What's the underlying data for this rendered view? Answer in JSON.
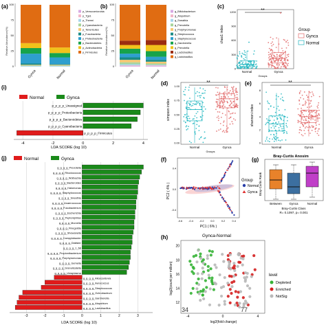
{
  "panels": {
    "a": {
      "label": "(a)",
      "ylabel": "Relative Abundance(%)",
      "groups": [
        "Gynca",
        "Normal"
      ],
      "legend": [
        "p_Verrucomicrobia",
        "p_Tgs1",
        "p_Thermi",
        "p_Cyanobacteria",
        "p_Tenericutes",
        "p_Fusobacteria",
        "p_Proteobacteria",
        "p_Bacteroidetes",
        "p_Actinobacteria",
        "p_Firmicutes"
      ],
      "colors": [
        "#d7a9e3",
        "#f2b5c9",
        "#a6d5ec",
        "#a7d49b",
        "#f7c873",
        "#1a8b85",
        "#2e9fce",
        "#17a34a",
        "#f1c21b",
        "#e06c12"
      ],
      "ticks": [
        "0",
        "25",
        "50",
        "75",
        "100"
      ],
      "values": {
        "Gynca": [
          0,
          0,
          1,
          1,
          1,
          2,
          16,
          9,
          8,
          62
        ],
        "Normal": [
          0,
          0,
          1,
          1,
          1,
          1,
          11,
          7,
          9,
          69
        ]
      }
    },
    "b": {
      "label": "(b)",
      "ylabel": "Relative Abundance(%)",
      "groups": [
        "Gynca",
        "Normal"
      ],
      "legend": [
        "g_Bifidobacterium",
        "g_Atopobium",
        "g_Sneathia",
        "g_Prevotella",
        "g_Porphyromonas",
        "g_Streptococcus",
        "g_Staphylococcus",
        "g_Gardnerella",
        "g_Prevotella",
        "g_Lactobacillus",
        "g_Lactobacillus"
      ],
      "colors": [
        "#d7a9e3",
        "#f2b5c9",
        "#a6d5ec",
        "#a7d49b",
        "#f7c873",
        "#1a8b85",
        "#2e9fce",
        "#17a34a",
        "#f1c21b",
        "#9b2c10",
        "#e06c12"
      ],
      "ticks": [
        "0",
        "25",
        "50",
        "75",
        "100"
      ],
      "values": {
        "Gynca": [
          1,
          1,
          2,
          3,
          4,
          4,
          6,
          8,
          6,
          7,
          58
        ],
        "Normal": [
          1,
          1,
          1,
          2,
          3,
          3,
          5,
          9,
          10,
          8,
          57
        ]
      }
    },
    "c": {
      "label": "(c)",
      "ylabel": "chao1 index",
      "xlabel": "Groups",
      "sig": "**",
      "ticks": [
        "0",
        "300",
        "600",
        "900",
        "1200"
      ],
      "ylim": [
        0,
        1250
      ],
      "legend_title": "Group",
      "legend": [
        "Gynca",
        "Normal"
      ]
    },
    "d": {
      "label": "(d)",
      "ylabel": "simpson index",
      "xlabel": "Groups",
      "sig": "**",
      "ticks": [
        "0.00",
        "0.25",
        "0.50",
        "0.75",
        "1.00"
      ],
      "ylim": [
        0,
        1.02
      ]
    },
    "e": {
      "label": "(e)",
      "ylabel": "shannon index",
      "sig": "**",
      "ticks": [
        "0",
        "2",
        "4",
        "6",
        "8"
      ],
      "ylim": [
        0,
        9
      ]
    },
    "i": {
      "label": "(i)",
      "xlabel": "LDA SCORE (log 10)",
      "legend": [
        "Normal",
        "Gynca"
      ],
      "ticks": [
        "-4",
        "-2",
        "0",
        "2",
        "4"
      ],
      "xlim": [
        -4.6,
        4.3
      ]
    },
    "j": {
      "label": "(j)",
      "xlabel": "LDA SCORE (log 10)",
      "legend": [
        "Normal",
        "Gynca"
      ],
      "ticks": [
        "-3",
        "-2",
        "-1",
        "0",
        "1",
        "2",
        "3"
      ],
      "xlim": [
        -3.9,
        3.8
      ]
    },
    "f": {
      "label": "(f)",
      "xlabel": "PC1 ( 6% )",
      "ylabel": "PC2 ( 4% )",
      "legend_title": "Group",
      "legend": [
        "Normal",
        "Gynca"
      ],
      "xticks": [
        "-0.6",
        "-0.4",
        "-0.2",
        "0.0",
        "0.2",
        "0.4"
      ],
      "yticks": [
        "-0.4",
        "0.0",
        "0.4"
      ]
    },
    "g": {
      "label": "(g)",
      "title": "Bray-Curtis Anosim",
      "ylabel": "Bray-Curtis Rank",
      "xlabel": "Bray-Curtis Class",
      "stat": "R= 0.1097, p= 0.001",
      "categories": [
        "Between",
        "Gynca",
        "Normal"
      ]
    },
    "h": {
      "label": "(h)",
      "title": "Gynca-Normal",
      "xlabel": "log2(fold change)",
      "ylabel": "log2(count per million)",
      "left_count": "34",
      "right_count": "77",
      "xticks": [
        "-4",
        "0",
        "4"
      ],
      "yticks": [
        "12",
        "14",
        "16",
        "18",
        "20"
      ],
      "legend_title": "level",
      "legend": [
        "Depleted",
        "Enriched",
        "NotSig"
      ]
    }
  },
  "chart_data": [
    {
      "type": "bar",
      "panel": "a",
      "stacked": true,
      "categories": [
        "Gynca",
        "Normal"
      ],
      "ylabel": "Relative Abundance(%)",
      "ylim": [
        0,
        100
      ],
      "series": [
        {
          "name": "p_Verrucomicrobia",
          "values": [
            0,
            0
          ]
        },
        {
          "name": "p_Tgs1",
          "values": [
            0,
            0
          ]
        },
        {
          "name": "p_Thermi",
          "values": [
            1,
            1
          ]
        },
        {
          "name": "p_Cyanobacteria",
          "values": [
            1,
            1
          ]
        },
        {
          "name": "p_Tenericutes",
          "values": [
            1,
            1
          ]
        },
        {
          "name": "p_Fusobacteria",
          "values": [
            2,
            1
          ]
        },
        {
          "name": "p_Proteobacteria",
          "values": [
            16,
            11
          ]
        },
        {
          "name": "p_Bacteroidetes",
          "values": [
            9,
            7
          ]
        },
        {
          "name": "p_Actinobacteria",
          "values": [
            8,
            9
          ]
        },
        {
          "name": "p_Firmicutes",
          "values": [
            62,
            69
          ]
        }
      ]
    },
    {
      "type": "bar",
      "panel": "b",
      "stacked": true,
      "categories": [
        "Gynca",
        "Normal"
      ],
      "ylabel": "Relative Abundance(%)",
      "ylim": [
        0,
        100
      ]
    },
    {
      "type": "box",
      "panel": "c",
      "categories": [
        "Normal",
        "Gynca"
      ],
      "ylabel": "chao1 index",
      "xlabel": "Groups",
      "medians": [
        90,
        220
      ],
      "q1": [
        40,
        120
      ],
      "q3": [
        170,
        340
      ],
      "whisker_low": [
        0,
        0
      ],
      "whisker_high": [
        380,
        650
      ],
      "max_outlier": [
        560,
        1180
      ]
    },
    {
      "type": "box",
      "panel": "d",
      "categories": [
        "Normal",
        "Gynca"
      ],
      "ylabel": "simpson index",
      "xlabel": "Groups",
      "medians": [
        0.59,
        0.78
      ],
      "q1": [
        0.39,
        0.62
      ],
      "q3": [
        0.74,
        0.87
      ],
      "whisker_low": [
        0.0,
        0.18
      ],
      "whisker_high": [
        0.98,
        0.99
      ]
    },
    {
      "type": "box",
      "panel": "e",
      "categories": [
        "Normal",
        "Gynca"
      ],
      "ylabel": "shannon index",
      "medians": [
        2.9,
        4.0
      ],
      "q1": [
        1.8,
        3.1
      ],
      "q3": [
        4.1,
        5.0
      ],
      "whisker_low": [
        0.2,
        1.0
      ],
      "whisker_high": [
        7.6,
        7.9
      ]
    },
    {
      "type": "bar",
      "panel": "i",
      "orientation": "horizontal",
      "xlabel": "LDA SCORE (log 10)",
      "xlim": [
        -4.6,
        4.3
      ],
      "categories": [
        "p_p_p_p_Unassigned",
        "p_p_p_p_Proteobacteria",
        "p_p_p_p_Bacteroidetes",
        "p_p_p_p_Cyanobacteria",
        "p_p_p_p_Firmicutes"
      ],
      "values": [
        4.0,
        3.8,
        3.6,
        3.2,
        -4.4
      ],
      "groups": [
        "Gynca",
        "Gynca",
        "Gynca",
        "Gynca",
        "Normal"
      ]
    },
    {
      "type": "bar",
      "panel": "j",
      "orientation": "horizontal",
      "xlabel": "LDA SCORE (log 10)",
      "xlim": [
        -3.9,
        3.8
      ],
      "categories": [
        "Prevotella",
        "Rhodococcus",
        "Wolbachia",
        "Bacteroides",
        "Halomonas",
        "Staphylococcus",
        "Sneathia",
        "Anaerococcus",
        "Fusobacterium",
        "Escherichia",
        "Peptoniphilus",
        "Murvella",
        "Finegoldia",
        "Shewanella",
        "Campylobacter",
        "Dialister",
        "1_68",
        "Propionibacterium",
        "Porphyromonas",
        "Gemella",
        "Granulicatella",
        "Ureaplasma",
        "Alloscardovia",
        "Aerococcus",
        "Streptococcus",
        "Ochrobactrum",
        "Gardnerella",
        "Atopobium",
        "Lactobacillus"
      ],
      "values": [
        3.3,
        3.2,
        3.1,
        3.05,
        3.0,
        3.0,
        2.95,
        2.9,
        2.9,
        2.85,
        2.85,
        2.8,
        2.8,
        2.75,
        2.7,
        2.7,
        2.65,
        2.6,
        2.6,
        2.55,
        2.5,
        2.4,
        -1.5,
        -2.0,
        -2.2,
        -3.2,
        -3.4,
        -3.5,
        -3.6
      ],
      "groups": [
        "Gynca",
        "Gynca",
        "Gynca",
        "Gynca",
        "Gynca",
        "Gynca",
        "Gynca",
        "Gynca",
        "Gynca",
        "Gynca",
        "Gynca",
        "Gynca",
        "Gynca",
        "Gynca",
        "Gynca",
        "Gynca",
        "Gynca",
        "Gynca",
        "Gynca",
        "Gynca",
        "Gynca",
        "Gynca",
        "Normal",
        "Normal",
        "Normal",
        "Normal",
        "Normal",
        "Normal",
        "Normal"
      ]
    },
    {
      "type": "scatter",
      "panel": "f",
      "xlabel": "PC1 ( 6% )",
      "ylabel": "PC2 ( 4% )",
      "xlim": [
        -0.65,
        0.5
      ],
      "ylim": [
        -0.55,
        0.6
      ],
      "series": [
        {
          "name": "Normal"
        },
        {
          "name": "Gynca"
        }
      ]
    },
    {
      "type": "box",
      "panel": "g",
      "title": "Bray-Curtis Anosim",
      "categories": [
        "Between",
        "Gynca",
        "Normal"
      ],
      "ylabel": "Bray-Curtis Rank",
      "xlabel": "Bray-Curtis Class"
    },
    {
      "type": "scatter",
      "panel": "h",
      "title": "Gynca-Normal",
      "xlabel": "log2(fold change)",
      "ylabel": "log2(count per million)",
      "xlim": [
        -4.8,
        4.8
      ],
      "ylim": [
        10.5,
        20.8
      ],
      "series": [
        {
          "name": "Depleted"
        },
        {
          "name": "Enriched"
        },
        {
          "name": "NotSig"
        }
      ]
    }
  ]
}
